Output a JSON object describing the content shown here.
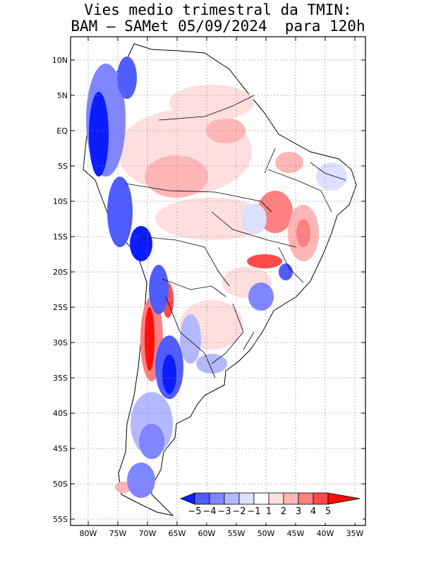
{
  "title_line1": "Vies medio trimestral da TMIN:",
  "title_line2": "BAM – SAMet 05/09/2024  para 120h",
  "lat_labels": [
    "10N",
    "5N",
    "EQ",
    "5S",
    "10S",
    "15S",
    "20S",
    "25S",
    "30S",
    "35S",
    "40S",
    "45S",
    "50S",
    "55S"
  ],
  "lon_labels": [
    "80W",
    "75W",
    "70W",
    "65W",
    "60W",
    "55W",
    "50W",
    "45W",
    "40W",
    "35W"
  ],
  "colorbar": {
    "labels": [
      "−5",
      "−4",
      "−3",
      "−2",
      "−1",
      "1",
      "2",
      "3",
      "4",
      "5"
    ],
    "colors": [
      "#0b1dff",
      "#4f5cff",
      "#8086ff",
      "#b3b8ff",
      "#dde0ff",
      "#ffffff",
      "#ffdede",
      "#ffb6b6",
      "#ff8080",
      "#ff4a4a",
      "#ff0b0b"
    ]
  }
}
